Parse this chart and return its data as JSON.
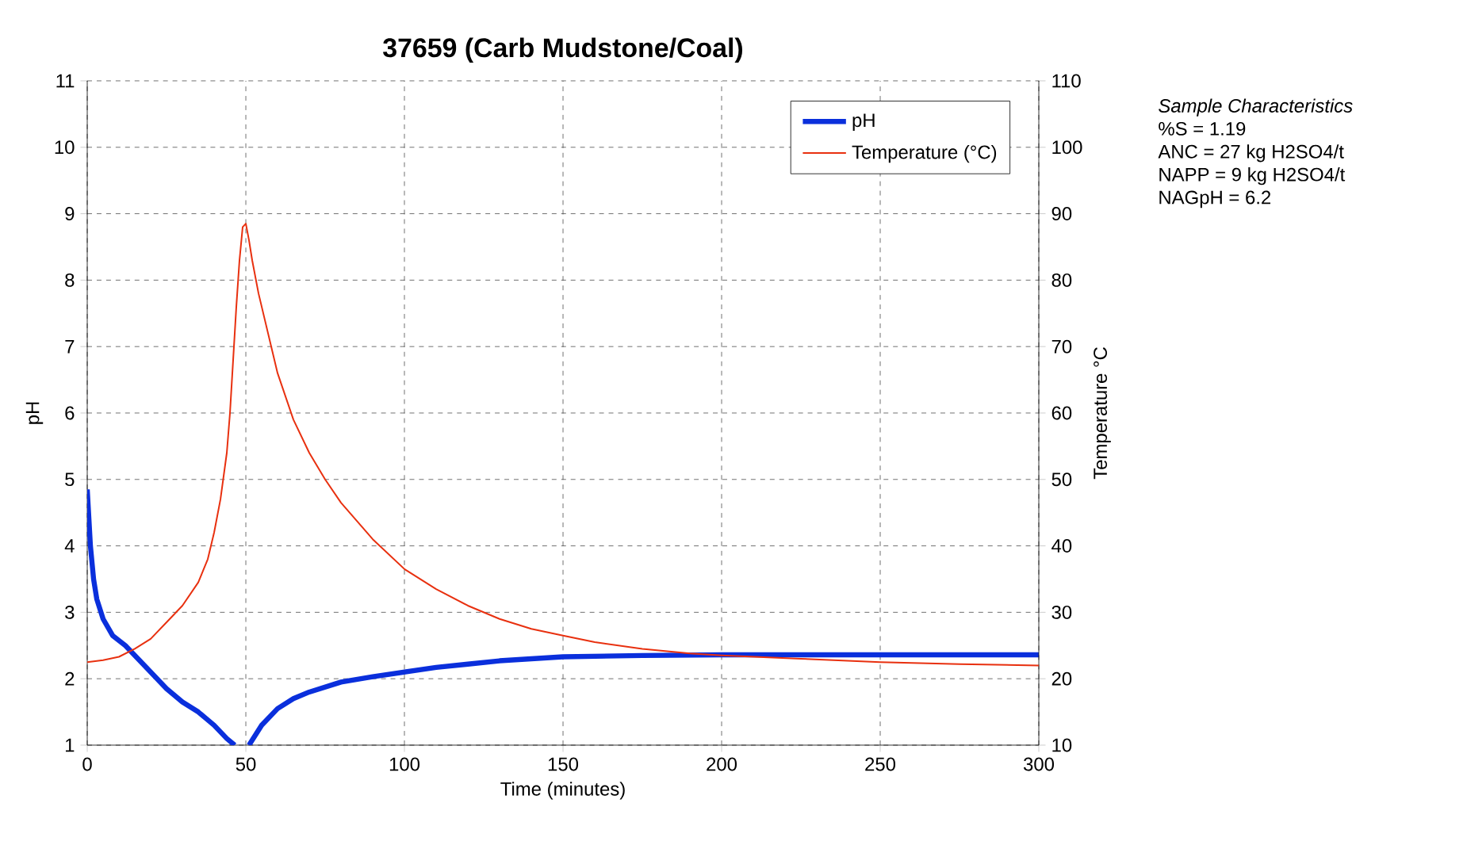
{
  "chart_data": {
    "type": "line",
    "title": "37659 (Carb Mudstone/Coal)",
    "xlabel": "Time (minutes)",
    "ylabel": "pH",
    "y2label": "Temperature °C",
    "xlim": [
      0,
      300
    ],
    "xticks": [
      0,
      50,
      100,
      150,
      200,
      250,
      300
    ],
    "ylim": [
      1,
      11
    ],
    "yticks": [
      1,
      2,
      3,
      4,
      5,
      6,
      7,
      8,
      9,
      10,
      11
    ],
    "y2lim": [
      10,
      110
    ],
    "y2ticks": [
      10,
      20,
      30,
      40,
      50,
      60,
      70,
      80,
      90,
      100,
      110
    ],
    "grid": true,
    "legend": "top right",
    "marker": "none",
    "line_style": "solid",
    "annotations": [
      "*Sample Characteristics*",
      "%S = 1.19",
      "ANC = 27 kg H2SO4/t",
      "NAPP = 9 kg H2SO4/t",
      "NAGpH = 6.2"
    ],
    "series": [
      {
        "name": "pH",
        "color": "#0a2fdc",
        "x": [
          0,
          1,
          2,
          3,
          5,
          8,
          12,
          16,
          20,
          25,
          30,
          35,
          40,
          44,
          46.5,
          48,
          51,
          55,
          60,
          65,
          70,
          80,
          90,
          100,
          110,
          120,
          130,
          140,
          150,
          175,
          200,
          250,
          300
        ],
        "values": [
          4.85,
          4.0,
          3.5,
          3.2,
          2.9,
          2.65,
          2.5,
          2.3,
          2.1,
          1.85,
          1.65,
          1.5,
          1.3,
          1.1,
          1.0,
          null,
          1.0,
          1.3,
          1.55,
          1.7,
          1.8,
          1.95,
          2.03,
          2.1,
          2.17,
          2.22,
          2.27,
          2.3,
          2.33,
          2.35,
          2.36,
          2.36,
          2.36
        ]
      },
      {
        "name": "Temperature (°C)",
        "color": "#e8300f",
        "axis": "y2",
        "x": [
          0,
          5,
          10,
          15,
          20,
          25,
          30,
          35,
          38,
          40,
          42,
          44,
          45,
          46,
          47,
          48,
          49,
          50,
          51,
          52,
          54,
          57,
          60,
          65,
          70,
          75,
          80,
          90,
          100,
          110,
          120,
          130,
          140,
          150,
          160,
          175,
          190,
          200,
          225,
          250,
          275,
          300
        ],
        "values": [
          22.5,
          22.8,
          23.3,
          24.5,
          26,
          28.5,
          31,
          34.5,
          38,
          42,
          47,
          54,
          60,
          68,
          76,
          83,
          88,
          88.5,
          86,
          83,
          78,
          72,
          66,
          59,
          54,
          50,
          46.5,
          41,
          36.5,
          33.5,
          31,
          29,
          27.5,
          26.5,
          25.5,
          24.5,
          23.8,
          23.5,
          23,
          22.5,
          22.2,
          22
        ]
      }
    ]
  }
}
